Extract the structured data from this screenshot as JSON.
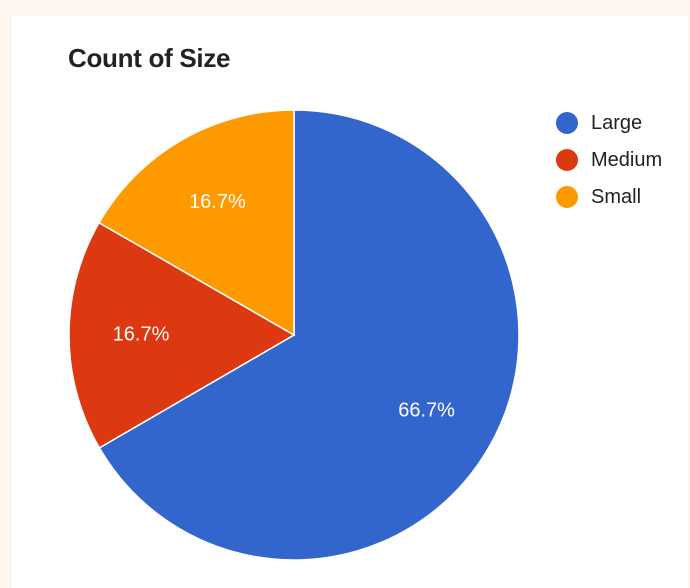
{
  "chart_data": {
    "type": "pie",
    "title": "Count of Size",
    "categories": [
      "Large",
      "Medium",
      "Small"
    ],
    "values": [
      66.7,
      16.7,
      16.7
    ],
    "labels": [
      "66.7%",
      "16.7%",
      "16.7%"
    ],
    "colors": [
      "#3366cc",
      "#dc3912",
      "#ff9900"
    ],
    "legend_position": "top-right"
  }
}
